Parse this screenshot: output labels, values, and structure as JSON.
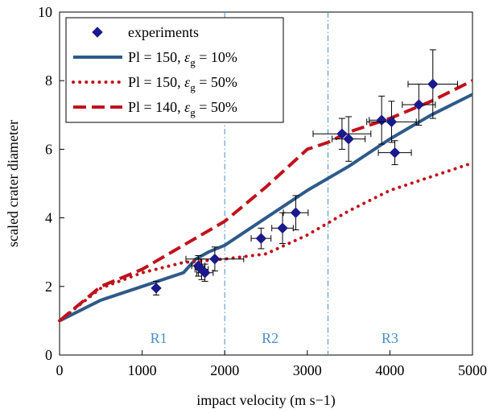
{
  "chart_data": {
    "type": "scatter",
    "xlabel": "impact velocity (m s−1)",
    "ylabel": "scaled crater diameter",
    "xlim": [
      0,
      5000
    ],
    "ylim": [
      0,
      10
    ],
    "xticks": [
      0,
      1000,
      2000,
      3000,
      4000,
      5000
    ],
    "yticks": [
      0,
      2,
      4,
      6,
      8,
      10
    ],
    "grid": false,
    "legend_position": "top-left",
    "regions": [
      {
        "label": "R1",
        "x": 1200
      },
      {
        "label": "R2",
        "x": 2550
      },
      {
        "label": "R3",
        "x": 4000
      }
    ],
    "region_boundaries": [
      2000,
      3250
    ],
    "boundary_color": "#4a90c8",
    "series": [
      {
        "name": "experiments",
        "kind": "points",
        "color": "#1a1a8c",
        "points": [
          {
            "x": 1170,
            "y": 1.95,
            "xerr": 0,
            "yerr": 0.2
          },
          {
            "x": 1680,
            "y": 2.6,
            "xerr": 80,
            "yerr": 0.3
          },
          {
            "x": 1720,
            "y": 2.5,
            "xerr": 80,
            "yerr": 0.3
          },
          {
            "x": 1760,
            "y": 2.4,
            "xerr": 100,
            "yerr": 0.25
          },
          {
            "x": 1880,
            "y": 2.8,
            "xerr": 350,
            "yerr": 0.35
          },
          {
            "x": 2440,
            "y": 3.4,
            "xerr": 120,
            "yerr": 0.3
          },
          {
            "x": 2700,
            "y": 3.7,
            "xerr": 130,
            "yerr": 0.45
          },
          {
            "x": 2860,
            "y": 4.15,
            "xerr": 150,
            "yerr": 0.5
          },
          {
            "x": 3420,
            "y": 6.45,
            "xerr": 350,
            "yerr": 0.45
          },
          {
            "x": 3500,
            "y": 6.3,
            "xerr": 200,
            "yerr": 0.65
          },
          {
            "x": 3900,
            "y": 6.85,
            "xerr": 150,
            "yerr": 0.7
          },
          {
            "x": 4020,
            "y": 6.8,
            "xerr": 300,
            "yerr": 0.6
          },
          {
            "x": 4060,
            "y": 5.9,
            "xerr": 200,
            "yerr": 0.35
          },
          {
            "x": 4350,
            "y": 7.3,
            "xerr": 200,
            "yerr": 0.6
          },
          {
            "x": 4520,
            "y": 7.9,
            "xerr": 300,
            "yerr": 1.0
          }
        ]
      },
      {
        "name": "Pl = 150, εg = 10%",
        "name_parts": {
          "pre": "Pl = 150, ",
          "eps": "ε",
          "sub": "g",
          "post": " = 10%"
        },
        "kind": "line",
        "style": "solid",
        "color": "#2e5a8a",
        "x": [
          0,
          500,
          1000,
          1500,
          1650,
          1800,
          2000,
          2500,
          3000,
          3500,
          4000,
          4500,
          5000
        ],
        "y": [
          1.0,
          1.6,
          2.0,
          2.4,
          2.8,
          3.0,
          3.2,
          4.0,
          4.8,
          5.5,
          6.3,
          7.0,
          7.6
        ]
      },
      {
        "name": "Pl = 150, εg = 50%",
        "name_parts": {
          "pre": "Pl = 150, ",
          "eps": "ε",
          "sub": "g",
          "post": " = 50%"
        },
        "kind": "line",
        "style": "dotted",
        "color": "#c0121c",
        "x": [
          0,
          500,
          1000,
          1500,
          2000,
          2500,
          3000,
          3500,
          4000,
          4500,
          5000
        ],
        "y": [
          1.0,
          1.95,
          2.4,
          2.7,
          2.8,
          2.95,
          3.5,
          4.2,
          4.8,
          5.2,
          5.6
        ]
      },
      {
        "name": "Pl = 140, εg = 50%",
        "name_parts": {
          "pre": "Pl = 140, ",
          "eps": "ε",
          "sub": "g",
          "post": " = 50%"
        },
        "kind": "line",
        "style": "dashed",
        "color": "#c0121c",
        "x": [
          0,
          500,
          1000,
          1500,
          2000,
          2500,
          3000,
          3250,
          3500,
          4000,
          4500,
          5000
        ],
        "y": [
          1.0,
          2.0,
          2.5,
          3.2,
          3.9,
          4.9,
          6.0,
          6.2,
          6.5,
          6.9,
          7.4,
          8.0
        ]
      }
    ]
  }
}
